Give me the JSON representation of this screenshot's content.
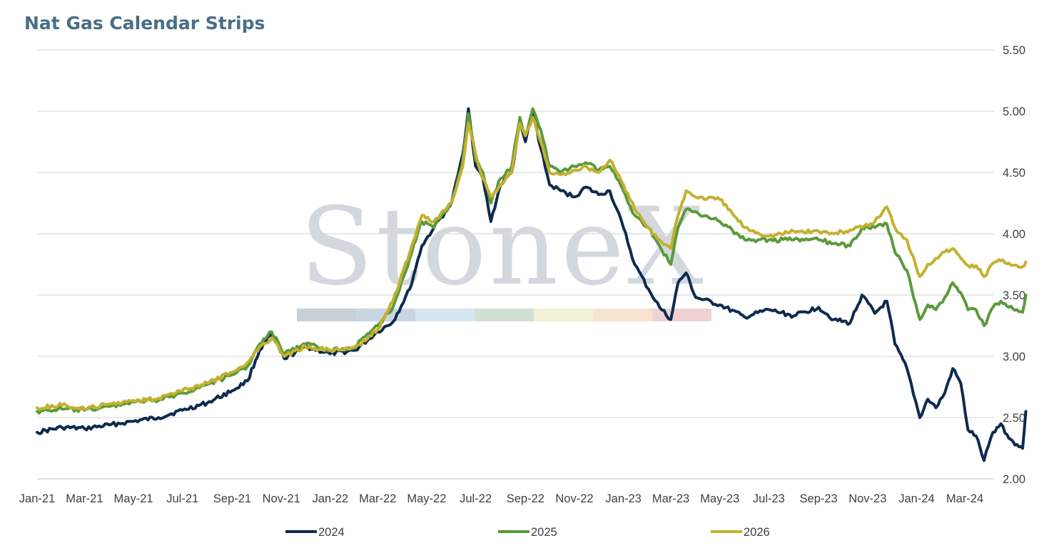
{
  "chart_data": {
    "type": "line",
    "title": "Nat Gas Calendar Strips",
    "watermark": "StoneX",
    "xlabel": "",
    "ylabel": "",
    "x_ticks": [
      "Jan-21",
      "Mar-21",
      "May-21",
      "Jul-21",
      "Sep-21",
      "Nov-21",
      "Jan-22",
      "Mar-22",
      "May-22",
      "Jul-22",
      "Sep-22",
      "Nov-22",
      "Jan-23",
      "Mar-23",
      "May-23",
      "Jul-23",
      "Sep-23",
      "Nov-23",
      "Jan-24",
      "Mar-24"
    ],
    "y_ticks": [
      "2.00",
      "2.50",
      "3.00",
      "3.50",
      "4.00",
      "4.50",
      "5.00",
      "5.50"
    ],
    "ylim": [
      2.0,
      5.5
    ],
    "y_axis_side": "right",
    "grid": "horizontal",
    "legend_position": "bottom",
    "series": [
      {
        "name": "2024",
        "color": "#0d2b4e",
        "points": [
          [
            "2021-01-01",
            2.38
          ],
          [
            "2021-02-01",
            2.42
          ],
          [
            "2021-03-01",
            2.41
          ],
          [
            "2021-04-01",
            2.44
          ],
          [
            "2021-05-01",
            2.47
          ],
          [
            "2021-06-01",
            2.5
          ],
          [
            "2021-07-01",
            2.56
          ],
          [
            "2021-08-01",
            2.62
          ],
          [
            "2021-09-01",
            2.72
          ],
          [
            "2021-09-20",
            2.8
          ],
          [
            "2021-10-05",
            3.05
          ],
          [
            "2021-10-20",
            3.18
          ],
          [
            "2021-11-05",
            2.98
          ],
          [
            "2021-12-01",
            3.08
          ],
          [
            "2022-01-01",
            3.02
          ],
          [
            "2022-02-01",
            3.05
          ],
          [
            "2022-03-01",
            3.2
          ],
          [
            "2022-03-20",
            3.28
          ],
          [
            "2022-04-10",
            3.55
          ],
          [
            "2022-04-25",
            3.9
          ],
          [
            "2022-05-10",
            4.05
          ],
          [
            "2022-06-01",
            4.25
          ],
          [
            "2022-06-15",
            4.65
          ],
          [
            "2022-06-22",
            5.02
          ],
          [
            "2022-07-01",
            4.55
          ],
          [
            "2022-07-10",
            4.45
          ],
          [
            "2022-07-20",
            4.1
          ],
          [
            "2022-08-01",
            4.4
          ],
          [
            "2022-08-15",
            4.5
          ],
          [
            "2022-08-25",
            4.9
          ],
          [
            "2022-09-01",
            4.75
          ],
          [
            "2022-09-10",
            5.0
          ],
          [
            "2022-09-20",
            4.7
          ],
          [
            "2022-10-01",
            4.4
          ],
          [
            "2022-10-15",
            4.35
          ],
          [
            "2022-11-01",
            4.3
          ],
          [
            "2022-11-15",
            4.38
          ],
          [
            "2022-12-01",
            4.32
          ],
          [
            "2022-12-15",
            4.35
          ],
          [
            "2023-01-01",
            4.05
          ],
          [
            "2023-01-15",
            3.75
          ],
          [
            "2023-02-01",
            3.55
          ],
          [
            "2023-02-15",
            3.4
          ],
          [
            "2023-03-01",
            3.3
          ],
          [
            "2023-03-10",
            3.6
          ],
          [
            "2023-03-20",
            3.68
          ],
          [
            "2023-04-01",
            3.48
          ],
          [
            "2023-05-01",
            3.42
          ],
          [
            "2023-06-01",
            3.32
          ],
          [
            "2023-07-01",
            3.38
          ],
          [
            "2023-08-01",
            3.33
          ],
          [
            "2023-09-01",
            3.4
          ],
          [
            "2023-09-20",
            3.3
          ],
          [
            "2023-10-10",
            3.27
          ],
          [
            "2023-10-25",
            3.5
          ],
          [
            "2023-11-10",
            3.35
          ],
          [
            "2023-11-25",
            3.45
          ],
          [
            "2023-12-05",
            3.1
          ],
          [
            "2023-12-20",
            2.9
          ],
          [
            "2024-01-05",
            2.5
          ],
          [
            "2024-01-15",
            2.65
          ],
          [
            "2024-01-25",
            2.58
          ],
          [
            "2024-02-05",
            2.7
          ],
          [
            "2024-02-15",
            2.9
          ],
          [
            "2024-02-25",
            2.78
          ],
          [
            "2024-03-05",
            2.4
          ],
          [
            "2024-03-15",
            2.35
          ],
          [
            "2024-03-25",
            2.15
          ],
          [
            "2024-04-05",
            2.38
          ],
          [
            "2024-04-15",
            2.45
          ],
          [
            "2024-04-25",
            2.33
          ],
          [
            "2024-05-05",
            2.28
          ],
          [
            "2024-05-12",
            2.25
          ],
          [
            "2024-05-16",
            2.55
          ]
        ]
      },
      {
        "name": "2025",
        "color": "#5a9a3a",
        "points": [
          [
            "2021-01-01",
            2.55
          ],
          [
            "2021-02-01",
            2.57
          ],
          [
            "2021-03-01",
            2.56
          ],
          [
            "2021-04-01",
            2.59
          ],
          [
            "2021-05-01",
            2.63
          ],
          [
            "2021-06-01",
            2.64
          ],
          [
            "2021-07-01",
            2.7
          ],
          [
            "2021-08-01",
            2.77
          ],
          [
            "2021-09-01",
            2.85
          ],
          [
            "2021-09-20",
            2.92
          ],
          [
            "2021-10-05",
            3.1
          ],
          [
            "2021-10-20",
            3.2
          ],
          [
            "2021-11-05",
            3.02
          ],
          [
            "2021-12-01",
            3.1
          ],
          [
            "2022-01-01",
            3.05
          ],
          [
            "2022-02-01",
            3.08
          ],
          [
            "2022-03-01",
            3.25
          ],
          [
            "2022-03-20",
            3.4
          ],
          [
            "2022-04-10",
            3.8
          ],
          [
            "2022-04-25",
            4.1
          ],
          [
            "2022-05-10",
            4.05
          ],
          [
            "2022-06-01",
            4.25
          ],
          [
            "2022-06-15",
            4.6
          ],
          [
            "2022-06-22",
            4.98
          ],
          [
            "2022-07-01",
            4.6
          ],
          [
            "2022-07-10",
            4.5
          ],
          [
            "2022-07-20",
            4.25
          ],
          [
            "2022-08-01",
            4.45
          ],
          [
            "2022-08-15",
            4.55
          ],
          [
            "2022-08-25",
            4.95
          ],
          [
            "2022-09-01",
            4.8
          ],
          [
            "2022-09-10",
            5.02
          ],
          [
            "2022-09-20",
            4.85
          ],
          [
            "2022-10-01",
            4.55
          ],
          [
            "2022-10-15",
            4.5
          ],
          [
            "2022-11-01",
            4.55
          ],
          [
            "2022-11-15",
            4.58
          ],
          [
            "2022-12-01",
            4.52
          ],
          [
            "2022-12-15",
            4.55
          ],
          [
            "2023-01-01",
            4.35
          ],
          [
            "2023-01-15",
            4.15
          ],
          [
            "2023-02-01",
            4.05
          ],
          [
            "2023-02-15",
            3.9
          ],
          [
            "2023-03-01",
            3.75
          ],
          [
            "2023-03-10",
            4.05
          ],
          [
            "2023-03-20",
            4.2
          ],
          [
            "2023-04-01",
            4.18
          ],
          [
            "2023-05-01",
            4.1
          ],
          [
            "2023-06-01",
            3.95
          ],
          [
            "2023-07-01",
            3.95
          ],
          [
            "2023-08-01",
            3.95
          ],
          [
            "2023-09-01",
            3.95
          ],
          [
            "2023-09-20",
            3.92
          ],
          [
            "2023-10-10",
            3.9
          ],
          [
            "2023-10-25",
            4.05
          ],
          [
            "2023-11-10",
            4.05
          ],
          [
            "2023-11-25",
            4.08
          ],
          [
            "2023-12-05",
            3.85
          ],
          [
            "2023-12-20",
            3.7
          ],
          [
            "2024-01-05",
            3.3
          ],
          [
            "2024-01-15",
            3.42
          ],
          [
            "2024-01-25",
            3.38
          ],
          [
            "2024-02-05",
            3.48
          ],
          [
            "2024-02-15",
            3.6
          ],
          [
            "2024-02-25",
            3.52
          ],
          [
            "2024-03-05",
            3.38
          ],
          [
            "2024-03-15",
            3.38
          ],
          [
            "2024-03-25",
            3.25
          ],
          [
            "2024-04-05",
            3.4
          ],
          [
            "2024-04-15",
            3.45
          ],
          [
            "2024-04-25",
            3.4
          ],
          [
            "2024-05-05",
            3.38
          ],
          [
            "2024-05-12",
            3.36
          ],
          [
            "2024-05-16",
            3.5
          ]
        ]
      },
      {
        "name": "2026",
        "color": "#c4b030",
        "points": [
          [
            "2021-01-01",
            2.58
          ],
          [
            "2021-02-01",
            2.6
          ],
          [
            "2021-03-01",
            2.57
          ],
          [
            "2021-04-01",
            2.61
          ],
          [
            "2021-05-01",
            2.64
          ],
          [
            "2021-06-01",
            2.66
          ],
          [
            "2021-07-01",
            2.72
          ],
          [
            "2021-08-01",
            2.78
          ],
          [
            "2021-09-01",
            2.87
          ],
          [
            "2021-09-20",
            2.95
          ],
          [
            "2021-10-05",
            3.08
          ],
          [
            "2021-10-20",
            3.15
          ],
          [
            "2021-11-05",
            3.0
          ],
          [
            "2021-12-01",
            3.08
          ],
          [
            "2022-01-01",
            3.05
          ],
          [
            "2022-02-01",
            3.07
          ],
          [
            "2022-03-01",
            3.22
          ],
          [
            "2022-03-20",
            3.45
          ],
          [
            "2022-04-10",
            3.85
          ],
          [
            "2022-04-25",
            4.15
          ],
          [
            "2022-05-10",
            4.1
          ],
          [
            "2022-06-01",
            4.25
          ],
          [
            "2022-06-15",
            4.55
          ],
          [
            "2022-06-22",
            4.9
          ],
          [
            "2022-07-01",
            4.65
          ],
          [
            "2022-07-10",
            4.45
          ],
          [
            "2022-07-20",
            4.3
          ],
          [
            "2022-08-01",
            4.4
          ],
          [
            "2022-08-15",
            4.5
          ],
          [
            "2022-08-25",
            4.9
          ],
          [
            "2022-09-01",
            4.8
          ],
          [
            "2022-09-10",
            4.95
          ],
          [
            "2022-09-20",
            4.75
          ],
          [
            "2022-10-01",
            4.5
          ],
          [
            "2022-10-15",
            4.48
          ],
          [
            "2022-11-01",
            4.52
          ],
          [
            "2022-11-15",
            4.55
          ],
          [
            "2022-12-01",
            4.5
          ],
          [
            "2022-12-15",
            4.6
          ],
          [
            "2023-01-01",
            4.4
          ],
          [
            "2023-01-15",
            4.2
          ],
          [
            "2023-02-01",
            4.05
          ],
          [
            "2023-02-15",
            3.95
          ],
          [
            "2023-03-01",
            3.88
          ],
          [
            "2023-03-10",
            4.15
          ],
          [
            "2023-03-20",
            4.35
          ],
          [
            "2023-04-01",
            4.3
          ],
          [
            "2023-05-01",
            4.28
          ],
          [
            "2023-06-01",
            4.05
          ],
          [
            "2023-07-01",
            3.98
          ],
          [
            "2023-08-01",
            4.02
          ],
          [
            "2023-09-01",
            4.02
          ],
          [
            "2023-09-20",
            4.0
          ],
          [
            "2023-10-10",
            4.03
          ],
          [
            "2023-10-25",
            4.05
          ],
          [
            "2023-11-10",
            4.1
          ],
          [
            "2023-11-25",
            4.22
          ],
          [
            "2023-12-05",
            4.05
          ],
          [
            "2023-12-20",
            3.95
          ],
          [
            "2024-01-05",
            3.65
          ],
          [
            "2024-01-15",
            3.75
          ],
          [
            "2024-01-25",
            3.8
          ],
          [
            "2024-02-05",
            3.85
          ],
          [
            "2024-02-15",
            3.88
          ],
          [
            "2024-02-25",
            3.8
          ],
          [
            "2024-03-05",
            3.74
          ],
          [
            "2024-03-15",
            3.74
          ],
          [
            "2024-03-25",
            3.65
          ],
          [
            "2024-04-05",
            3.76
          ],
          [
            "2024-04-15",
            3.78
          ],
          [
            "2024-04-25",
            3.76
          ],
          [
            "2024-05-05",
            3.74
          ],
          [
            "2024-05-12",
            3.73
          ],
          [
            "2024-05-16",
            3.77
          ]
        ]
      }
    ]
  }
}
